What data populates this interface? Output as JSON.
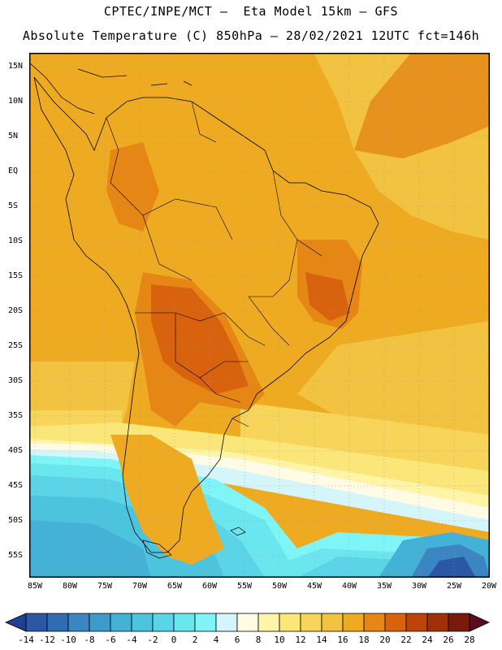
{
  "title": {
    "line1": "CPTEC/INPE/MCT –  Eta Model 15km – GFS",
    "line2": "Absolute Temperature (C) 850hPa – 28/02/2021 12UTC fct=146h"
  },
  "map": {
    "lat_labels": [
      "15N",
      "10N",
      "5N",
      "EQ",
      "5S",
      "10S",
      "15S",
      "20S",
      "25S",
      "30S",
      "35S",
      "40S",
      "45S",
      "50S",
      "55S"
    ],
    "lon_labels": [
      "85W",
      "80W",
      "75W",
      "70W",
      "65W",
      "60W",
      "55W",
      "50W",
      "45W",
      "40W",
      "35W",
      "30W",
      "25W",
      "20W"
    ]
  },
  "colorbar": {
    "labels": [
      "-14",
      "-12",
      "-10",
      "-8",
      "-6",
      "-4",
      "-2",
      "0",
      "2",
      "4",
      "6",
      "8",
      "10",
      "12",
      "14",
      "16",
      "18",
      "20",
      "22",
      "24",
      "26",
      "28"
    ],
    "colors": [
      "#1f3f8f",
      "#2a58a5",
      "#2f6cb3",
      "#3b86c2",
      "#3c9bcc",
      "#44b1d6",
      "#4dc4de",
      "#5ad4e6",
      "#6ae6ef",
      "#7ff5f8",
      "#d4f6fb",
      "#fffbe5",
      "#fff4a8",
      "#fbe67a",
      "#f6d55a",
      "#f2c340",
      "#eeaa20",
      "#e58615",
      "#d8620d",
      "#bd4408",
      "#a03008",
      "#7a1a0a",
      "#5a0c20"
    ]
  }
}
